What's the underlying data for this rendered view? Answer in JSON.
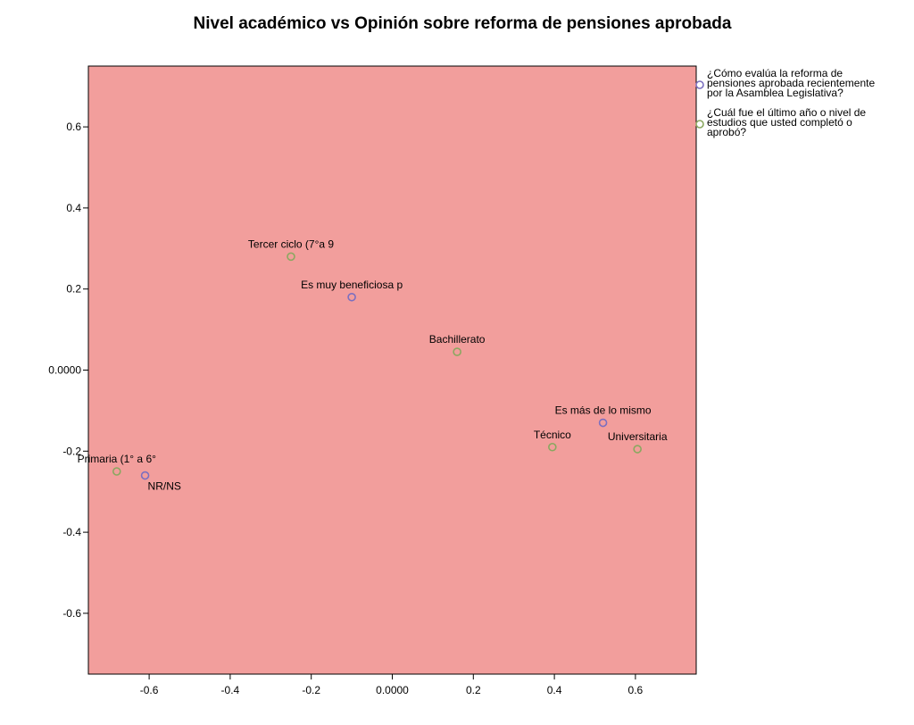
{
  "chart_data": {
    "type": "scatter",
    "title": "Nivel académico vs Opinión sobre reforma de pensiones aprobada",
    "xlabel": "",
    "ylabel": "",
    "xlim": [
      -0.75,
      0.75
    ],
    "ylim": [
      -0.75,
      0.75
    ],
    "x_ticks": [
      -0.6,
      -0.4,
      -0.2,
      0.0,
      0.2,
      0.4,
      0.6
    ],
    "x_tick_labels": [
      "-0.6",
      "-0.4",
      "-0.2",
      "0.0000",
      "0.2",
      "0.4",
      "0.6"
    ],
    "y_ticks": [
      0.6,
      0.4,
      0.2,
      0.0,
      -0.2,
      -0.4,
      -0.6
    ],
    "y_tick_labels": [
      "0.6",
      "0.4",
      "0.2",
      "0.0000",
      "-0.2",
      "-0.4",
      "-0.6"
    ],
    "grid": false,
    "legend_position": "top-right outside",
    "plot_background": "#f29e9c",
    "series": [
      {
        "name": "¿Cómo evalúa la reforma de pensiones aprobada recientemente por la Asamblea Legislativa?",
        "legend_lines": [
          "¿Cómo evalúa la reforma de",
          "pensiones aprobada recientemente",
          "por la Asamblea Legislativa?"
        ],
        "color": "#7b6fc0",
        "points": [
          {
            "label": "Es muy beneficiosa p",
            "x": -0.1,
            "y": 0.18
          },
          {
            "label": "Es más de lo mismo",
            "x": 0.52,
            "y": -0.13
          },
          {
            "label": "NR/NS",
            "x": -0.61,
            "y": -0.26
          }
        ]
      },
      {
        "name": "¿Cuál fue el último año o nivel de estudios que usted completó o aprobó?",
        "legend_lines": [
          "¿Cuál fue el último año o nivel de",
          "estudios que usted completó o",
          "aprobó?"
        ],
        "color": "#8aa860",
        "points": [
          {
            "label": "Tercer ciclo (7°a 9",
            "x": -0.25,
            "y": 0.28
          },
          {
            "label": "Bachillerato",
            "x": 0.16,
            "y": 0.045
          },
          {
            "label": "Técnico",
            "x": 0.395,
            "y": -0.19
          },
          {
            "label": "Universitaria",
            "x": 0.605,
            "y": -0.195
          },
          {
            "label": "Primaria (1° a 6°",
            "x": -0.68,
            "y": -0.25
          }
        ]
      }
    ]
  }
}
